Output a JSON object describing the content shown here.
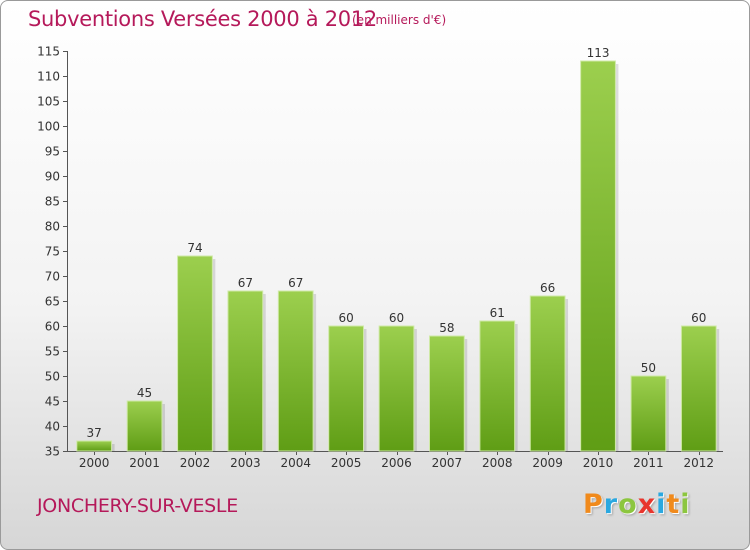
{
  "header": {
    "title": "Subventions Versées 2000 à 2012",
    "unit": "(en milliers d'€)"
  },
  "footer": {
    "commune": "JONCHERY-SUR-VESLE",
    "logo_letters": [
      "P",
      "r",
      "o",
      "x",
      "i",
      "t",
      "i"
    ],
    "logo_colors": [
      "#f08a1c",
      "#2aa8e0",
      "#8cc63f",
      "#e8362d",
      "#2aa8e0",
      "#f08a1c",
      "#8cc63f"
    ]
  },
  "colors": {
    "bar_top": "#9ccf4e",
    "bar_bottom": "#5f9d15",
    "text": "#333333",
    "title": "#b5195a",
    "grid": "#cfcfcf"
  },
  "chart_data": {
    "type": "bar",
    "title": "Subventions Versées 2000 à 2012",
    "xlabel": "",
    "ylabel": "",
    "categories": [
      "2000",
      "2001",
      "2002",
      "2003",
      "2004",
      "2005",
      "2006",
      "2007",
      "2008",
      "2009",
      "2010",
      "2011",
      "2012"
    ],
    "values": [
      37,
      45,
      74,
      67,
      67,
      60,
      60,
      58,
      61,
      66,
      113,
      50,
      60
    ],
    "ylim": [
      35,
      115
    ],
    "yticks": [
      35,
      40,
      45,
      50,
      55,
      60,
      65,
      70,
      75,
      80,
      85,
      90,
      95,
      100,
      105,
      110,
      115
    ],
    "grid": false,
    "data_labels": true
  }
}
